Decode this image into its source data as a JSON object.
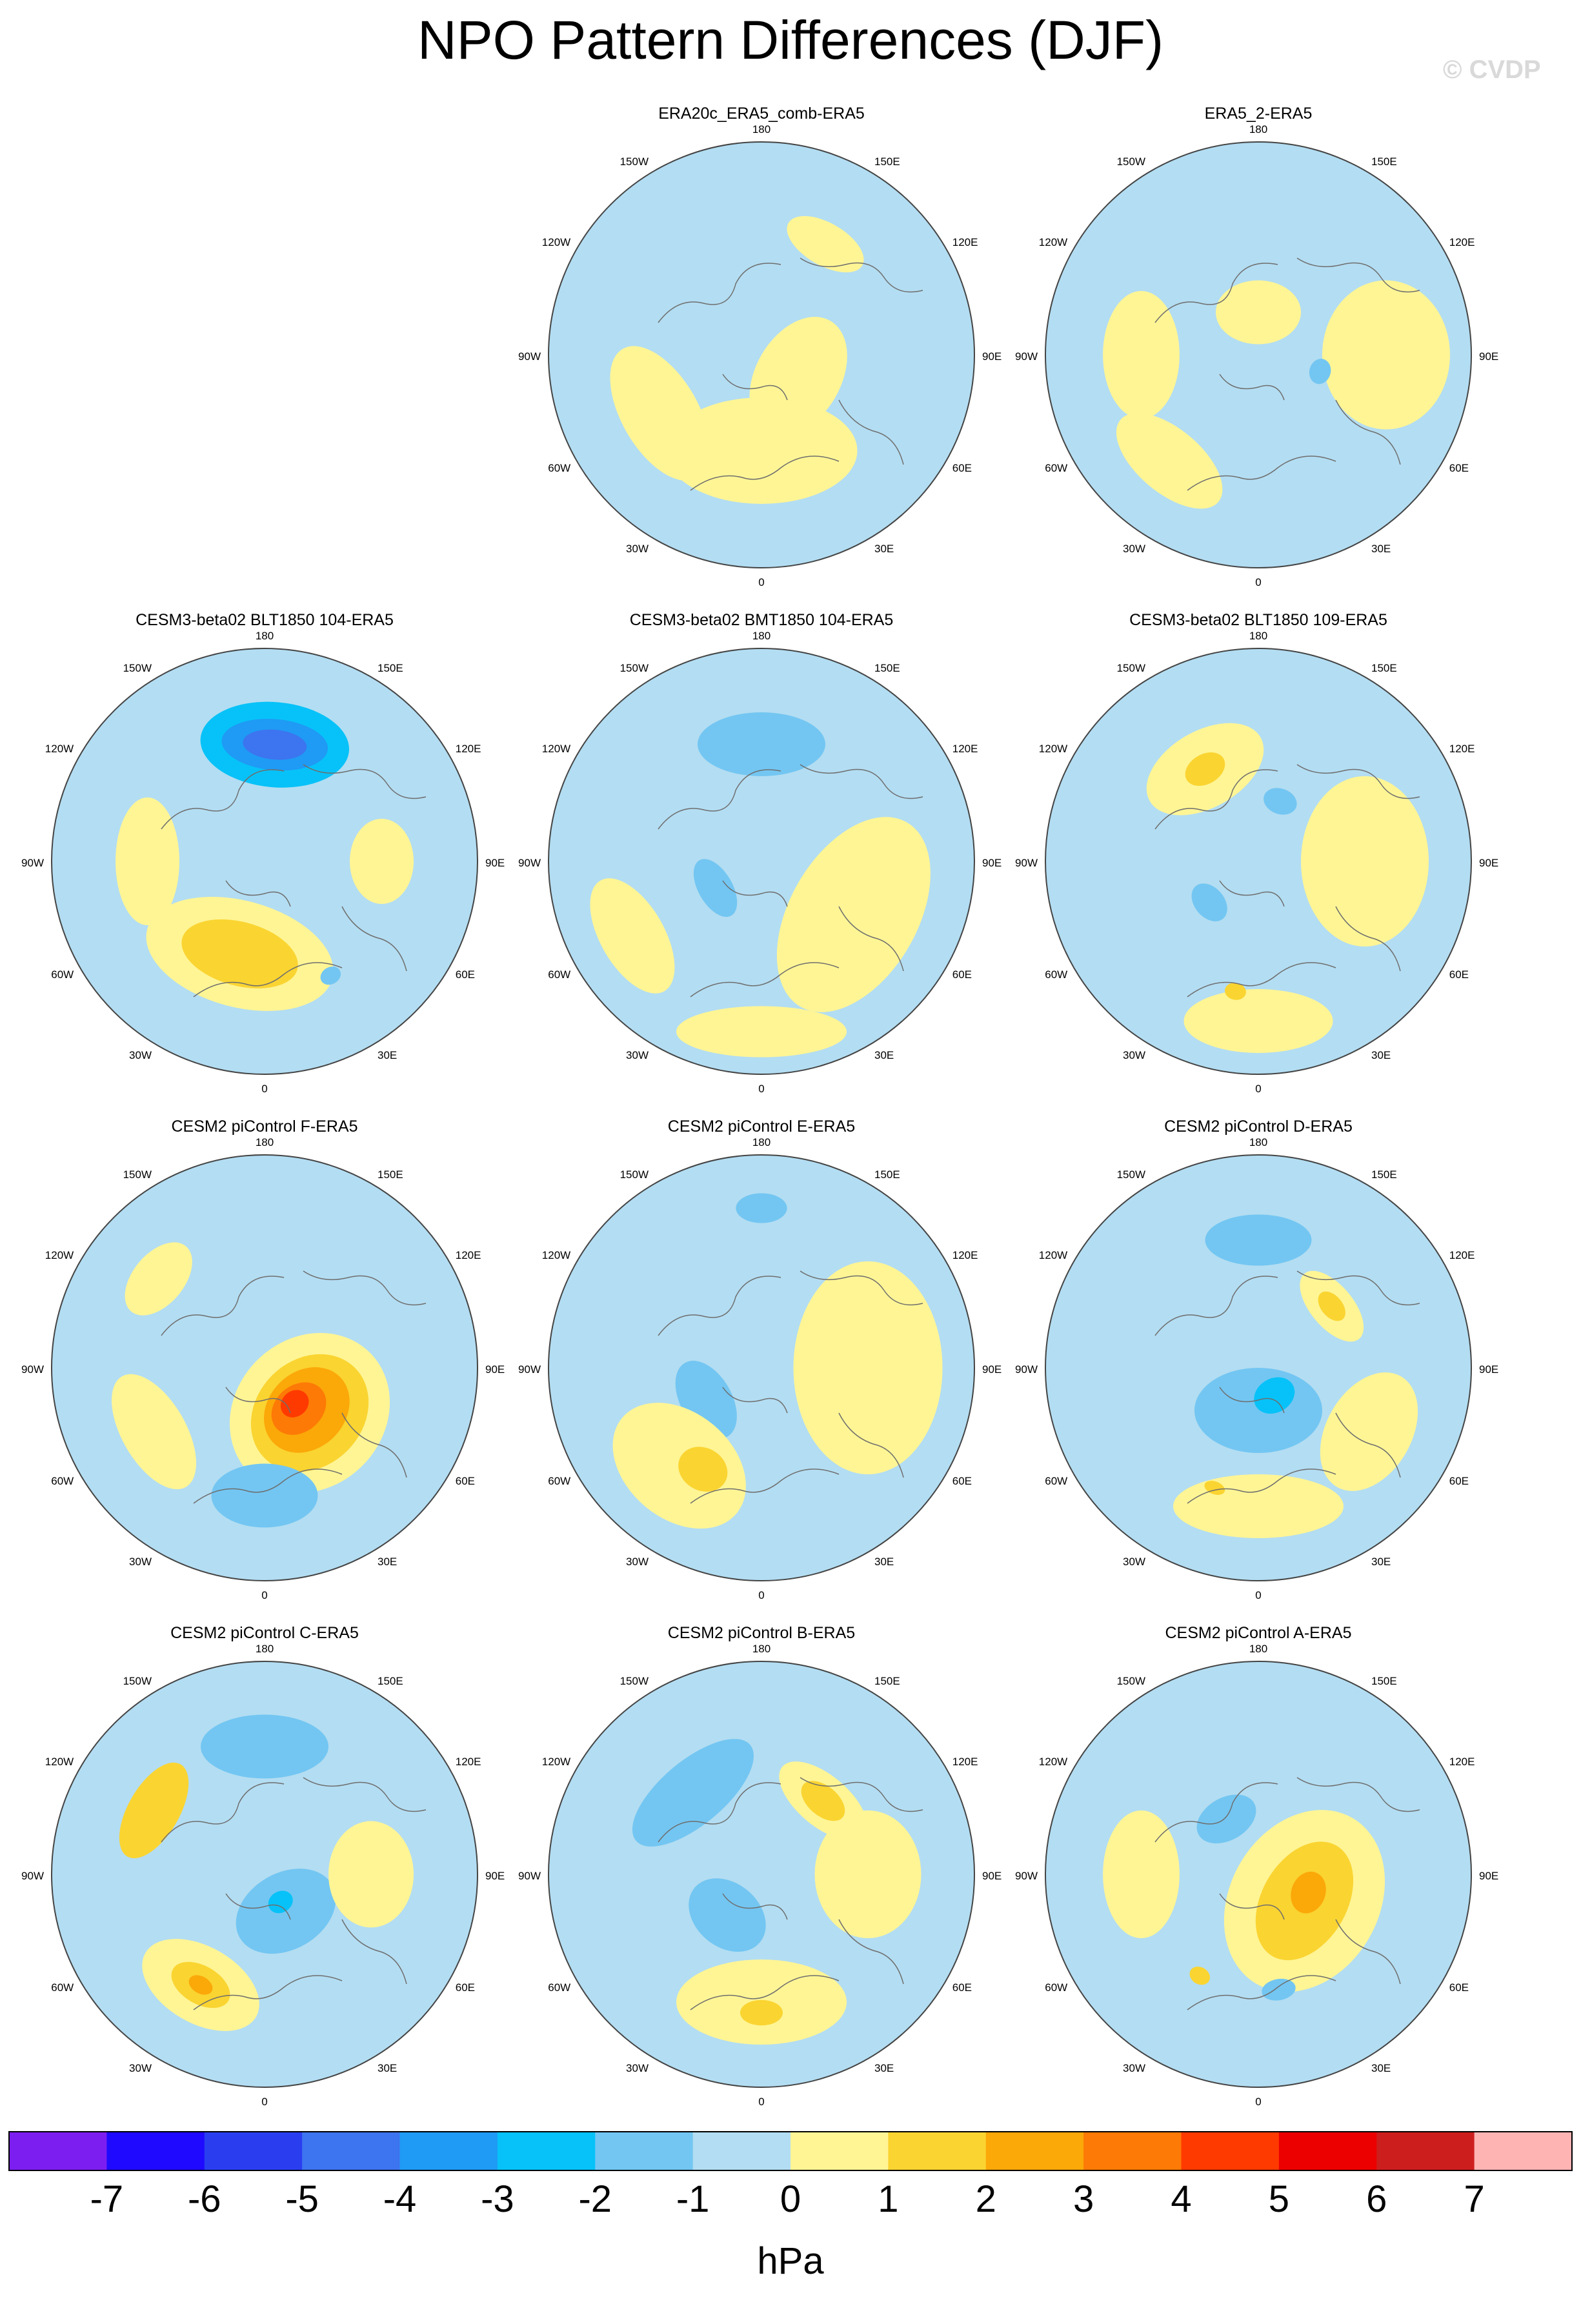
{
  "figure": {
    "title": "NPO Pattern Differences (DJF)",
    "watermark": "© CVDP",
    "unit": "hPa"
  },
  "map_labels": {
    "top": "180",
    "bottom": "0",
    "left_outer": "90W",
    "right_outer": "90E",
    "upper_left1": "150W",
    "upper_left2": "120W",
    "upper_right1": "150E",
    "upper_right2": "120E",
    "lower_left1": "60W",
    "lower_left2": "30W",
    "lower_right1": "60E",
    "lower_right2": "30E"
  },
  "colors": {
    "ocean_base": "#b3ddf2",
    "land_lines": "#6e6e6e",
    "scale": [
      "#7d1ef0",
      "#1f0aff",
      "#2a3ef0",
      "#3d74ef",
      "#1f9af5",
      "#07c2f8",
      "#73c6f2",
      "#b3ddf2",
      "#fff595",
      "#fad431",
      "#fba809",
      "#fd7a06",
      "#ff3a00",
      "#ec0000",
      "#cd1e1e",
      "#ffb4b4"
    ]
  },
  "chart_data": {
    "type": "heatmap",
    "projection": "north-polar-stereographic",
    "colorbar": {
      "tick_labels": [
        "-7",
        "-6",
        "-5",
        "-4",
        "-3",
        "-2",
        "-1",
        "0",
        "1",
        "2",
        "3",
        "4",
        "5",
        "6",
        "7"
      ],
      "levels": [
        -7,
        -6,
        -5,
        -4,
        -3,
        -2,
        -1,
        0,
        1,
        2,
        3,
        4,
        5,
        6,
        7
      ]
    },
    "panels": [
      {
        "title": "ERA20c_ERA5_comb-ERA5",
        "row": 0,
        "col": 1,
        "min_hPa": -1,
        "max_hPa": 1,
        "blobs": [
          {
            "lon": 0,
            "colat": 0.45,
            "rx": 0.45,
            "ry": 0.25,
            "value": 0.5
          },
          {
            "lon": 60,
            "colat": 0.2,
            "rx": 0.3,
            "ry": 0.2,
            "value": 0.5
          },
          {
            "lon": 300,
            "colat": 0.55,
            "rx": 0.35,
            "ry": 0.18,
            "value": 0.5
          },
          {
            "lon": 150,
            "colat": 0.6,
            "rx": 0.2,
            "ry": 0.1,
            "value": 0.5
          }
        ]
      },
      {
        "title": "ERA5_2-ERA5",
        "row": 0,
        "col": 2,
        "min_hPa": -2,
        "max_hPa": 1,
        "blobs": [
          {
            "lon": 90,
            "colat": 0.6,
            "rx": 0.35,
            "ry": 0.3,
            "value": 0.5
          },
          {
            "lon": 270,
            "colat": 0.55,
            "rx": 0.3,
            "ry": 0.18,
            "value": 0.5
          },
          {
            "lon": 320,
            "colat": 0.65,
            "rx": 0.3,
            "ry": 0.15,
            "value": 0.5
          },
          {
            "lon": 180,
            "colat": 0.2,
            "rx": 0.2,
            "ry": 0.15,
            "value": 0.5
          },
          {
            "lon": 75,
            "colat": 0.3,
            "rx": 0.06,
            "ry": 0.05,
            "value": -1.5
          }
        ]
      },
      {
        "title": "CESM3-beta02 BLT1850 104-ERA5",
        "row": 1,
        "col": 0,
        "min_hPa": -5,
        "max_hPa": 2,
        "blobs": [
          {
            "lon": 175,
            "colat": 0.55,
            "rx": 0.35,
            "ry": 0.2,
            "value": -2.5
          },
          {
            "lon": 175,
            "colat": 0.55,
            "rx": 0.25,
            "ry": 0.12,
            "value": -3.5
          },
          {
            "lon": 175,
            "colat": 0.55,
            "rx": 0.15,
            "ry": 0.07,
            "value": -4.5
          },
          {
            "lon": 345,
            "colat": 0.45,
            "rx": 0.45,
            "ry": 0.25,
            "value": 0.5
          },
          {
            "lon": 345,
            "colat": 0.45,
            "rx": 0.28,
            "ry": 0.15,
            "value": 1.5
          },
          {
            "lon": 270,
            "colat": 0.55,
            "rx": 0.3,
            "ry": 0.15,
            "value": 0.5
          },
          {
            "lon": 90,
            "colat": 0.55,
            "rx": 0.2,
            "ry": 0.15,
            "value": 0.5
          },
          {
            "lon": 30,
            "colat": 0.62,
            "rx": 0.05,
            "ry": 0.04,
            "value": -1.5
          }
        ]
      },
      {
        "title": "CESM3-beta02 BMT1850 104-ERA5",
        "row": 1,
        "col": 1,
        "min_hPa": -2,
        "max_hPa": 1,
        "blobs": [
          {
            "lon": 180,
            "colat": 0.55,
            "rx": 0.3,
            "ry": 0.15,
            "value": -1.5
          },
          {
            "lon": 300,
            "colat": 0.25,
            "rx": 0.15,
            "ry": 0.08,
            "value": -1.5
          },
          {
            "lon": 60,
            "colat": 0.5,
            "rx": 0.5,
            "ry": 0.3,
            "value": 0.5
          },
          {
            "lon": 300,
            "colat": 0.7,
            "rx": 0.3,
            "ry": 0.15,
            "value": 0.5
          },
          {
            "lon": 0,
            "colat": 0.8,
            "rx": 0.4,
            "ry": 0.12,
            "value": 0.5
          }
        ]
      },
      {
        "title": "CESM3-beta02 BLT1850 109-ERA5",
        "row": 1,
        "col": 2,
        "min_hPa": -2,
        "max_hPa": 2,
        "blobs": [
          {
            "lon": 210,
            "colat": 0.5,
            "rx": 0.3,
            "ry": 0.18,
            "value": 0.5
          },
          {
            "lon": 210,
            "colat": 0.5,
            "rx": 0.1,
            "ry": 0.07,
            "value": 1.5
          },
          {
            "lon": 90,
            "colat": 0.5,
            "rx": 0.4,
            "ry": 0.3,
            "value": 0.5
          },
          {
            "lon": 0,
            "colat": 0.75,
            "rx": 0.35,
            "ry": 0.15,
            "value": 0.5
          },
          {
            "lon": 350,
            "colat": 0.62,
            "rx": 0.05,
            "ry": 0.04,
            "value": 1.5
          },
          {
            "lon": 160,
            "colat": 0.3,
            "rx": 0.08,
            "ry": 0.06,
            "value": -1.5
          },
          {
            "lon": 310,
            "colat": 0.3,
            "rx": 0.1,
            "ry": 0.07,
            "value": -1.5
          }
        ]
      },
      {
        "title": "CESM2 piControl F-ERA5",
        "row": 2,
        "col": 0,
        "min_hPa": -2,
        "max_hPa": 5,
        "blobs": [
          {
            "lon": 45,
            "colat": 0.3,
            "rx": 0.4,
            "ry": 0.35,
            "value": 0.5
          },
          {
            "lon": 45,
            "colat": 0.3,
            "rx": 0.3,
            "ry": 0.25,
            "value": 1.5
          },
          {
            "lon": 45,
            "colat": 0.28,
            "rx": 0.22,
            "ry": 0.18,
            "value": 2.5
          },
          {
            "lon": 40,
            "colat": 0.25,
            "rx": 0.14,
            "ry": 0.11,
            "value": 3.5
          },
          {
            "lon": 40,
            "colat": 0.22,
            "rx": 0.07,
            "ry": 0.06,
            "value": 4.5
          },
          {
            "lon": 230,
            "colat": 0.65,
            "rx": 0.2,
            "ry": 0.12,
            "value": 0.5
          },
          {
            "lon": 300,
            "colat": 0.6,
            "rx": 0.3,
            "ry": 0.15,
            "value": 0.5
          },
          {
            "lon": 0,
            "colat": 0.6,
            "rx": 0.25,
            "ry": 0.15,
            "value": -1.5
          }
        ]
      },
      {
        "title": "CESM2 piControl E-ERA5",
        "row": 2,
        "col": 1,
        "min_hPa": -2,
        "max_hPa": 2,
        "blobs": [
          {
            "lon": 180,
            "colat": 0.75,
            "rx": 0.12,
            "ry": 0.07,
            "value": -1.5
          },
          {
            "lon": 300,
            "colat": 0.3,
            "rx": 0.2,
            "ry": 0.12,
            "value": -1.5
          },
          {
            "lon": 90,
            "colat": 0.5,
            "rx": 0.5,
            "ry": 0.35,
            "value": 0.5
          },
          {
            "lon": 320,
            "colat": 0.6,
            "rx": 0.35,
            "ry": 0.25,
            "value": 0.5
          },
          {
            "lon": 330,
            "colat": 0.55,
            "rx": 0.12,
            "ry": 0.1,
            "value": 1.5
          }
        ]
      },
      {
        "title": "CESM2 piControl D-ERA5",
        "row": 2,
        "col": 2,
        "min_hPa": -3,
        "max_hPa": 2,
        "blobs": [
          {
            "lon": 180,
            "colat": 0.6,
            "rx": 0.25,
            "ry": 0.12,
            "value": -1.5
          },
          {
            "lon": 0,
            "colat": 0.2,
            "rx": 0.3,
            "ry": 0.2,
            "value": -1.5
          },
          {
            "lon": 30,
            "colat": 0.15,
            "rx": 0.1,
            "ry": 0.08,
            "value": -2.5
          },
          {
            "lon": 130,
            "colat": 0.45,
            "rx": 0.2,
            "ry": 0.1,
            "value": 0.5
          },
          {
            "lon": 130,
            "colat": 0.45,
            "rx": 0.08,
            "ry": 0.05,
            "value": 1.5
          },
          {
            "lon": 60,
            "colat": 0.6,
            "rx": 0.3,
            "ry": 0.2,
            "value": 0.5
          },
          {
            "lon": 0,
            "colat": 0.65,
            "rx": 0.4,
            "ry": 0.15,
            "value": 0.5
          },
          {
            "lon": 340,
            "colat": 0.6,
            "rx": 0.05,
            "ry": 0.03,
            "value": 1.5
          }
        ]
      },
      {
        "title": "CESM2 piControl C-ERA5",
        "row": 3,
        "col": 0,
        "min_hPa": -3,
        "max_hPa": 3,
        "blobs": [
          {
            "lon": 180,
            "colat": 0.6,
            "rx": 0.3,
            "ry": 0.15,
            "value": -1.5
          },
          {
            "lon": 30,
            "colat": 0.2,
            "rx": 0.25,
            "ry": 0.18,
            "value": -1.5
          },
          {
            "lon": 30,
            "colat": 0.15,
            "rx": 0.06,
            "ry": 0.05,
            "value": -2.5
          },
          {
            "lon": 240,
            "colat": 0.6,
            "rx": 0.25,
            "ry": 0.12,
            "value": 1.5
          },
          {
            "lon": 330,
            "colat": 0.6,
            "rx": 0.3,
            "ry": 0.18,
            "value": 0.5
          },
          {
            "lon": 330,
            "colat": 0.6,
            "rx": 0.15,
            "ry": 0.09,
            "value": 1.5
          },
          {
            "lon": 330,
            "colat": 0.6,
            "rx": 0.06,
            "ry": 0.04,
            "value": 2.5
          },
          {
            "lon": 90,
            "colat": 0.5,
            "rx": 0.25,
            "ry": 0.2,
            "value": 0.5
          }
        ]
      },
      {
        "title": "CESM2 piControl B-ERA5",
        "row": 3,
        "col": 1,
        "min_hPa": -2,
        "max_hPa": 2,
        "blobs": [
          {
            "lon": 220,
            "colat": 0.5,
            "rx": 0.35,
            "ry": 0.15,
            "value": -1.5
          },
          {
            "lon": 320,
            "colat": 0.25,
            "rx": 0.2,
            "ry": 0.15,
            "value": -1.5
          },
          {
            "lon": 140,
            "colat": 0.45,
            "rx": 0.25,
            "ry": 0.12,
            "value": 0.5
          },
          {
            "lon": 140,
            "colat": 0.45,
            "rx": 0.12,
            "ry": 0.07,
            "value": 1.5
          },
          {
            "lon": 0,
            "colat": 0.6,
            "rx": 0.4,
            "ry": 0.2,
            "value": 0.5
          },
          {
            "lon": 0,
            "colat": 0.65,
            "rx": 0.1,
            "ry": 0.06,
            "value": 1.5
          },
          {
            "lon": 90,
            "colat": 0.5,
            "rx": 0.3,
            "ry": 0.25,
            "value": 0.5
          }
        ]
      },
      {
        "title": "CESM2 piControl A-ERA5",
        "row": 3,
        "col": 2,
        "min_hPa": -2,
        "max_hPa": 3,
        "blobs": [
          {
            "lon": 60,
            "colat": 0.25,
            "rx": 0.45,
            "ry": 0.35,
            "value": 0.5
          },
          {
            "lon": 60,
            "colat": 0.25,
            "rx": 0.3,
            "ry": 0.2,
            "value": 1.5
          },
          {
            "lon": 70,
            "colat": 0.25,
            "rx": 0.1,
            "ry": 0.08,
            "value": 2.5
          },
          {
            "lon": 210,
            "colat": 0.3,
            "rx": 0.15,
            "ry": 0.1,
            "value": -1.5
          },
          {
            "lon": 270,
            "colat": 0.55,
            "rx": 0.3,
            "ry": 0.18,
            "value": 0.5
          },
          {
            "lon": 330,
            "colat": 0.55,
            "rx": 0.05,
            "ry": 0.04,
            "value": 1.5
          },
          {
            "lon": 10,
            "colat": 0.55,
            "rx": 0.08,
            "ry": 0.05,
            "value": -1.5
          }
        ]
      }
    ]
  }
}
